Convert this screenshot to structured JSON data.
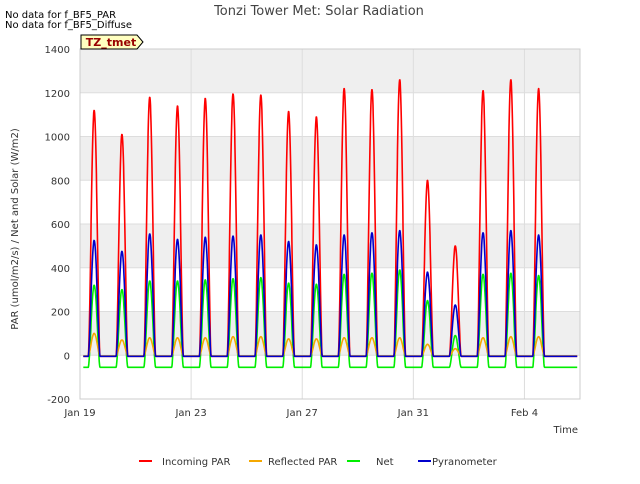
{
  "notes": [
    "No data for f_BF5_PAR",
    "No data for f_BF5_Diffuse"
  ],
  "site_tag": "TZ_tmet",
  "colors": {
    "incoming_par": "#ff0000",
    "reflected_par": "#f5a800",
    "net": "#00ee00",
    "pyranometer": "#0000cc",
    "tag_fill": "#ffffc0",
    "tag_border": "#000000",
    "tag_text": "#990000",
    "band": "#efefef",
    "grid": "#dddddd"
  },
  "chart_data": {
    "type": "line",
    "title": "Tonzi Tower Met: Solar Radiation",
    "xlabel": "Time",
    "ylabel": "PAR (umol/m2/s) / Net and Solar (W/m2)",
    "ylim": [
      -200,
      1400
    ],
    "yticks": [
      -200,
      0,
      200,
      400,
      600,
      800,
      1000,
      1200,
      1400
    ],
    "xlim": [
      "2025-01-19",
      "2025-02-06"
    ],
    "xticks": [
      {
        "date": "2025-01-19",
        "label": "Jan 19"
      },
      {
        "date": "2025-01-23",
        "label": "Jan 23"
      },
      {
        "date": "2025-01-27",
        "label": "Jan 27"
      },
      {
        "date": "2025-01-31",
        "label": "Jan 31"
      },
      {
        "date": "2025-02-04",
        "label": "Feb 4"
      }
    ],
    "grid": true,
    "legend_position": "bottom",
    "series": [
      {
        "name": "Incoming PAR",
        "color_key": "incoming_par",
        "night": -5,
        "x": [
          "2025-01-19",
          "2025-01-20",
          "2025-01-21",
          "2025-01-22",
          "2025-01-23",
          "2025-01-24",
          "2025-01-25",
          "2025-01-26",
          "2025-01-27",
          "2025-01-28",
          "2025-01-29",
          "2025-01-30",
          "2025-01-31",
          "2025-02-01",
          "2025-02-02",
          "2025-02-03",
          "2025-02-04",
          "2025-02-05"
        ],
        "peaks": [
          1120,
          1010,
          1180,
          1140,
          1175,
          1195,
          1190,
          1115,
          1090,
          1220,
          1215,
          1260,
          800,
          500,
          1210,
          1260,
          1220,
          null
        ]
      },
      {
        "name": "Reflected PAR",
        "color_key": "reflected_par",
        "night": -3,
        "x": [
          "2025-01-19",
          "2025-01-20",
          "2025-01-21",
          "2025-01-22",
          "2025-01-23",
          "2025-01-24",
          "2025-01-25",
          "2025-01-26",
          "2025-01-27",
          "2025-01-28",
          "2025-01-29",
          "2025-01-30",
          "2025-01-31",
          "2025-02-01",
          "2025-02-02",
          "2025-02-03",
          "2025-02-04",
          "2025-02-05"
        ],
        "peaks": [
          100,
          70,
          80,
          80,
          80,
          85,
          85,
          75,
          75,
          80,
          80,
          80,
          50,
          30,
          80,
          85,
          85,
          null
        ]
      },
      {
        "name": "Net",
        "color_key": "net",
        "night": -55,
        "x": [
          "2025-01-19",
          "2025-01-20",
          "2025-01-21",
          "2025-01-22",
          "2025-01-23",
          "2025-01-24",
          "2025-01-25",
          "2025-01-26",
          "2025-01-27",
          "2025-01-28",
          "2025-01-29",
          "2025-01-30",
          "2025-01-31",
          "2025-02-01",
          "2025-02-02",
          "2025-02-03",
          "2025-02-04",
          "2025-02-05"
        ],
        "peaks": [
          320,
          300,
          340,
          340,
          345,
          350,
          355,
          330,
          325,
          370,
          375,
          390,
          250,
          90,
          370,
          375,
          365,
          null
        ]
      },
      {
        "name": "Pyranometer",
        "color_key": "pyranometer",
        "night": -5,
        "x": [
          "2025-01-19",
          "2025-01-20",
          "2025-01-21",
          "2025-01-22",
          "2025-01-23",
          "2025-01-24",
          "2025-01-25",
          "2025-01-26",
          "2025-01-27",
          "2025-01-28",
          "2025-01-29",
          "2025-01-30",
          "2025-01-31",
          "2025-02-01",
          "2025-02-02",
          "2025-02-03",
          "2025-02-04",
          "2025-02-05"
        ],
        "peaks": [
          525,
          475,
          555,
          530,
          540,
          545,
          550,
          520,
          505,
          550,
          560,
          570,
          380,
          230,
          560,
          570,
          550,
          null
        ]
      }
    ]
  }
}
